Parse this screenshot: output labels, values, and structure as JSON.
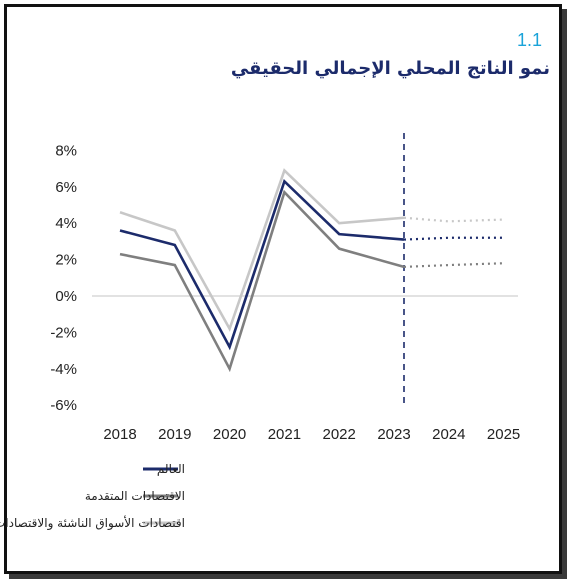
{
  "figure": {
    "number": "1.1",
    "title": "نمو الناتج المحلي الإجمالي الحقيقي"
  },
  "chart_data": {
    "type": "line",
    "categories": [
      "2018",
      "2019",
      "2020",
      "2021",
      "2022",
      "2023",
      "2024",
      "2025"
    ],
    "y_ticks": [
      "8%",
      "6%",
      "4%",
      "2%",
      "0%",
      "-2%",
      "-4%",
      "-6%"
    ],
    "ylim": [
      -6,
      8
    ],
    "grid": false,
    "projection_start_category": "2023",
    "series": [
      {
        "name": "العالم",
        "color": "#1c2b6b",
        "values": [
          3.6,
          2.8,
          -2.8,
          6.3,
          3.4,
          3.1,
          3.2,
          3.2
        ]
      },
      {
        "name": "الاقتصادات المتقدمة",
        "color": "#7f7f7f",
        "values": [
          2.3,
          1.7,
          -4.0,
          5.7,
          2.6,
          1.6,
          1.7,
          1.8
        ]
      },
      {
        "name": "اقتصادات الأسواق الناشئة والاقتصادات النامية",
        "color": "#c7c7c7",
        "values": [
          4.6,
          3.6,
          -1.8,
          6.9,
          4.0,
          4.3,
          4.1,
          4.2
        ]
      }
    ],
    "legend_position": "bottom-left"
  }
}
